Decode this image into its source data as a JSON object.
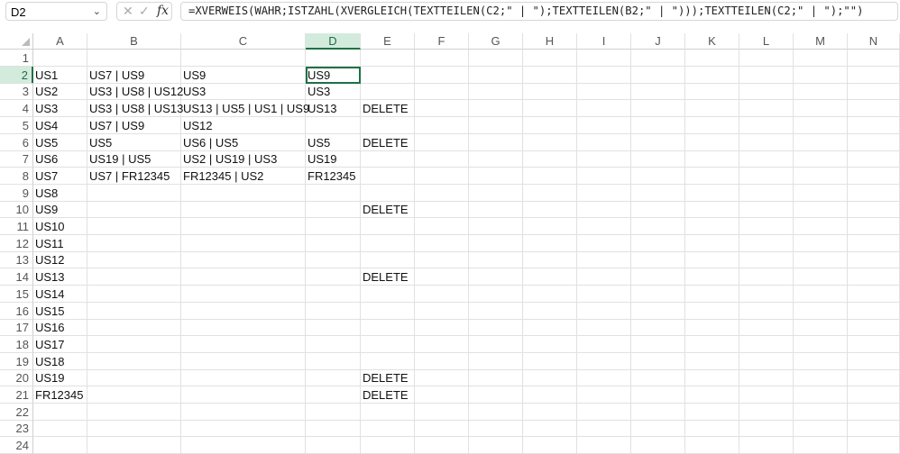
{
  "name_box": "D2",
  "formula": "=XVERWEIS(WAHR;ISTZAHL(XVERGLEICH(TEXTTEILEN(C2;\" | \");TEXTTEILEN(B2;\" | \")));TEXTTEILEN(C2;\" | \");\"\")",
  "columns": [
    "A",
    "B",
    "C",
    "D",
    "E",
    "F",
    "G",
    "H",
    "I",
    "J",
    "K",
    "L",
    "M",
    "N"
  ],
  "selected_column": "D",
  "selected_row": 2,
  "active_cell": "D2",
  "accent": "#1e7145",
  "rows": [
    [
      "",
      "",
      "",
      "",
      ""
    ],
    [
      "US1",
      "US7 | US9",
      "US9",
      "US9",
      ""
    ],
    [
      "US2",
      "US3 | US8 | US12",
      "US3",
      "US3",
      ""
    ],
    [
      "US3",
      "US3 | US8 | US13",
      "US13 | US5 | US1 | US9",
      "US13",
      "DELETE"
    ],
    [
      "US4",
      "US7 | US9",
      "US12",
      "",
      ""
    ],
    [
      "US5",
      "US5",
      "US6 | US5",
      "US5",
      "DELETE"
    ],
    [
      "US6",
      "US19 | US5",
      "US2 | US19 | US3",
      "US19",
      ""
    ],
    [
      "US7",
      "US7 | FR12345",
      "FR12345 | US2",
      "FR12345",
      ""
    ],
    [
      "US8",
      "",
      "",
      "",
      ""
    ],
    [
      "US9",
      "",
      "",
      "",
      "DELETE"
    ],
    [
      "US10",
      "",
      "",
      "",
      ""
    ],
    [
      "US11",
      "",
      "",
      "",
      ""
    ],
    [
      "US12",
      "",
      "",
      "",
      ""
    ],
    [
      "US13",
      "",
      "",
      "",
      "DELETE"
    ],
    [
      "US14",
      "",
      "",
      "",
      ""
    ],
    [
      "US15",
      "",
      "",
      "",
      ""
    ],
    [
      "US16",
      "",
      "",
      "",
      ""
    ],
    [
      "US17",
      "",
      "",
      "",
      ""
    ],
    [
      "US18",
      "",
      "",
      "",
      ""
    ],
    [
      "US19",
      "",
      "",
      "",
      "DELETE"
    ],
    [
      "FR12345",
      "",
      "",
      "",
      "DELETE"
    ],
    [
      "",
      "",
      "",
      "",
      ""
    ],
    [
      "",
      "",
      "",
      "",
      ""
    ],
    [
      "",
      "",
      "",
      "",
      ""
    ]
  ]
}
